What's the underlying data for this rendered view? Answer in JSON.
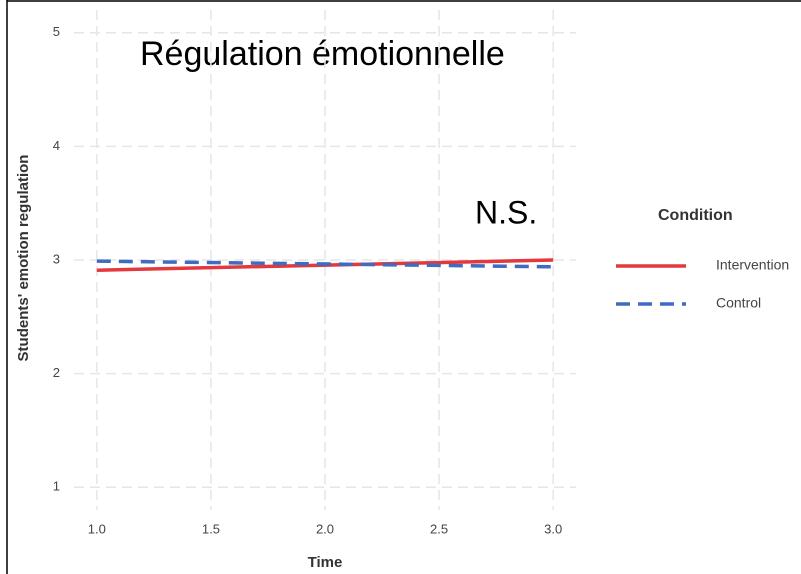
{
  "chart_data": {
    "type": "line",
    "title": "Régulation émotionnelle",
    "annotation": "N.S.",
    "xlabel": "Time",
    "ylabel": "Students' emotion regulation",
    "legend_title": "Condition",
    "legend": "right",
    "grid": true,
    "x": [
      1,
      3
    ],
    "series": [
      {
        "name": "Intervention",
        "color": "#e3383c",
        "dash": false,
        "values": [
          2.91,
          3.0
        ]
      },
      {
        "name": "Control",
        "color": "#3d6cc0",
        "dash": true,
        "values": [
          2.99,
          2.94
        ]
      }
    ],
    "xlim": [
      0.9,
      3.1
    ],
    "xticks": [
      {
        "value": 1,
        "label": "1.0"
      },
      {
        "value": 1.5,
        "label": "1.5"
      },
      {
        "value": 2,
        "label": "2.0"
      },
      {
        "value": 2.5,
        "label": "2.5"
      },
      {
        "value": 3,
        "label": "3.0"
      }
    ],
    "ylim": [
      0.8,
      5.2
    ],
    "yticks": [
      1,
      2,
      3,
      4,
      5
    ]
  }
}
